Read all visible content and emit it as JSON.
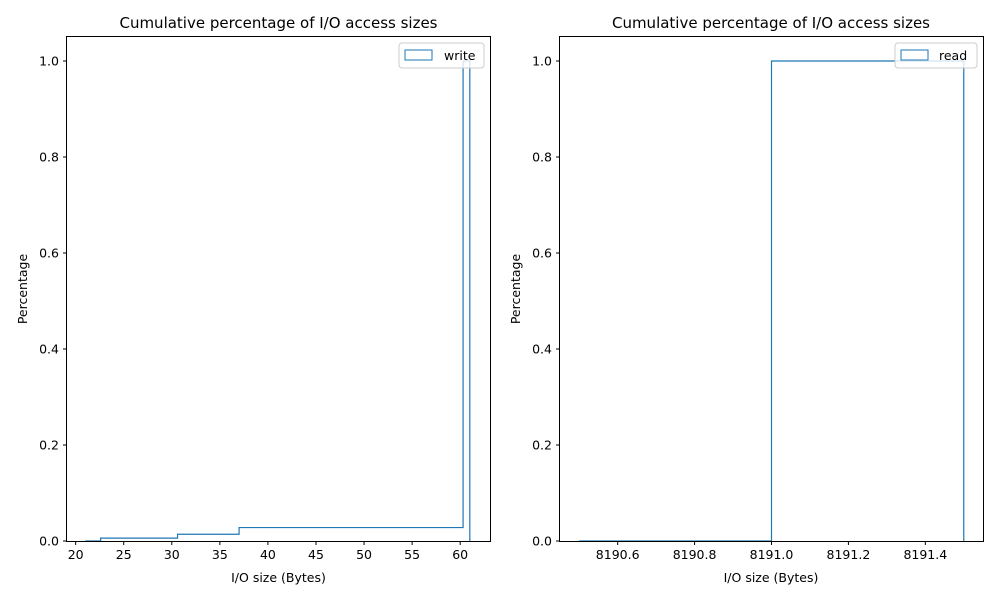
{
  "chart_data": [
    {
      "type": "step",
      "title": "Cumulative percentage of I/O access sizes",
      "xlabel": "I/O size (Bytes)",
      "ylabel": "Percentage",
      "xlim": [
        19.1,
        63.1
      ],
      "ylim": [
        0,
        1.05
      ],
      "xticks": [
        20,
        25,
        30,
        35,
        40,
        45,
        50,
        55,
        60
      ],
      "xtick_labels": [
        "20",
        "25",
        "30",
        "35",
        "40",
        "45",
        "50",
        "55",
        "60"
      ],
      "yticks": [
        0,
        0.2,
        0.4,
        0.6,
        0.8,
        1.0
      ],
      "ytick_labels": [
        "0.0",
        "0.2",
        "0.4",
        "0.6",
        "0.8",
        "1.0"
      ],
      "legend_position": "top-right",
      "color": "#1f77b4",
      "series": [
        {
          "name": "write",
          "points": [
            [
              21.0,
              0
            ],
            [
              22.6,
              0
            ],
            [
              22.6,
              0.006
            ],
            [
              30.6,
              0.006
            ],
            [
              30.6,
              0.014
            ],
            [
              37.0,
              0.014
            ],
            [
              37.0,
              0.028
            ],
            [
              60.3,
              0.028
            ],
            [
              60.3,
              1.0
            ],
            [
              61.0,
              1.0
            ],
            [
              61.0,
              0
            ]
          ]
        }
      ]
    },
    {
      "type": "step",
      "title": "Cumulative percentage of I/O access sizes",
      "xlabel": "I/O size (Bytes)",
      "ylabel": "Percentage",
      "xlim": [
        8190.45,
        8191.55
      ],
      "ylim": [
        0,
        1.05
      ],
      "xticks": [
        8190.6,
        8190.8,
        8191.0,
        8191.2,
        8191.4
      ],
      "xtick_labels": [
        "8190.6",
        "8190.8",
        "8191.0",
        "8191.2",
        "8191.4"
      ],
      "yticks": [
        0,
        0.2,
        0.4,
        0.6,
        0.8,
        1.0
      ],
      "ytick_labels": [
        "0.0",
        "0.2",
        "0.4",
        "0.6",
        "0.8",
        "1.0"
      ],
      "legend_position": "top-right",
      "color": "#1f77b4",
      "series": [
        {
          "name": "read",
          "points": [
            [
              8190.5,
              0
            ],
            [
              8191.0,
              0
            ],
            [
              8191.0,
              1.0
            ],
            [
              8191.5,
              1.0
            ],
            [
              8191.5,
              0
            ]
          ]
        }
      ]
    }
  ]
}
